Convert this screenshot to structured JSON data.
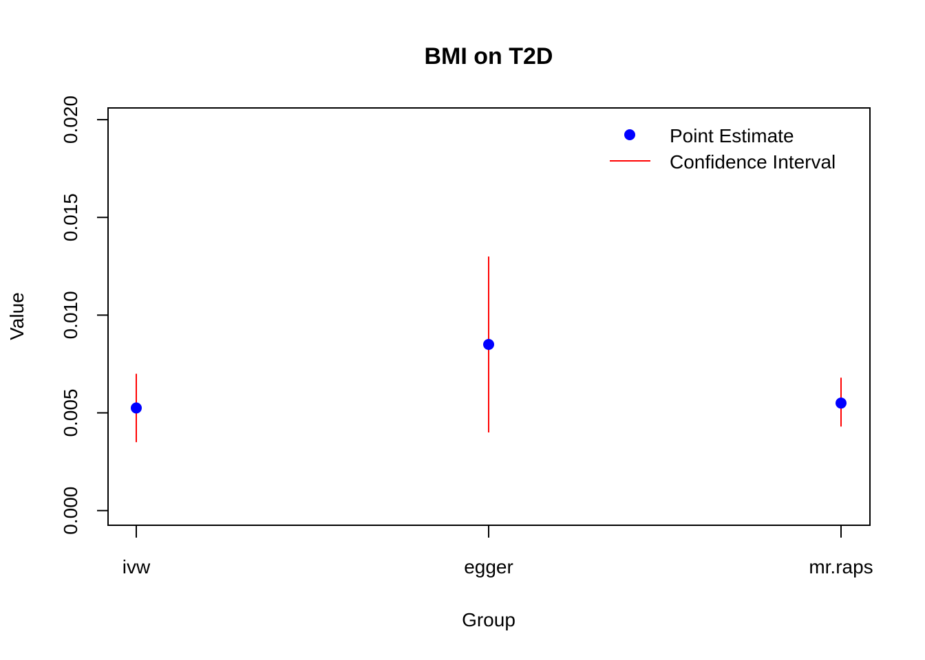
{
  "chart_data": {
    "type": "scatter",
    "title": "BMI on T2D",
    "xlabel": "Group",
    "ylabel": "Value",
    "categories": [
      "ivw",
      "egger",
      "mr.raps"
    ],
    "series": [
      {
        "name": "Point Estimate",
        "values": [
          0.00525,
          0.0085,
          0.0055
        ],
        "color": "#0000ff"
      },
      {
        "name": "Confidence Interval",
        "lower": [
          0.0035,
          0.004,
          0.0043
        ],
        "upper": [
          0.007,
          0.013,
          0.0068
        ],
        "color": "#ff0000"
      }
    ],
    "ylim": [
      -0.00075,
      0.0206
    ],
    "yticks": [
      "0.000",
      "0.005",
      "0.010",
      "0.015",
      "0.020"
    ],
    "ytick_values": [
      0,
      0.005,
      0.01,
      0.015,
      0.02
    ],
    "grid": false,
    "legend_position": "top-right"
  }
}
